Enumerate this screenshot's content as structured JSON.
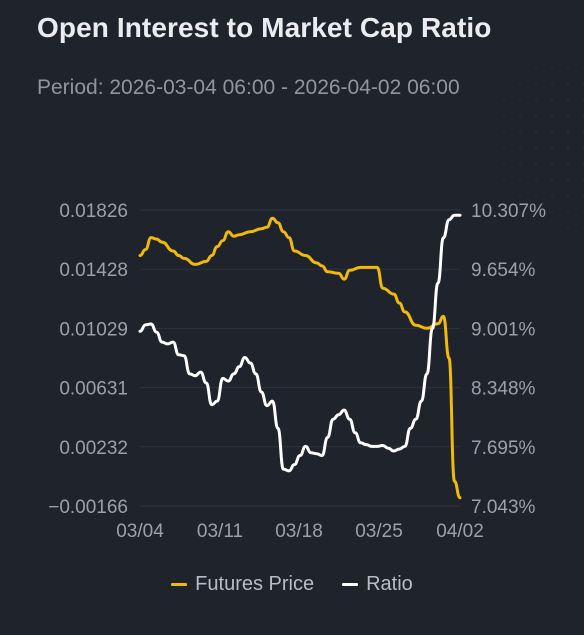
{
  "header": {
    "title": "Open Interest to Market Cap Ratio",
    "period": "Period: 2026-03-04 06:00 - 2026-04-02 06:00"
  },
  "colors": {
    "futures": "#f0b90b",
    "ratio": "#ffffff",
    "grid": "#2e333c",
    "axis_text": "#9aa1ac",
    "background": "#1f232b"
  },
  "legend": [
    {
      "name": "Futures Price",
      "color": "#f0b90b"
    },
    {
      "name": "Ratio",
      "color": "#ffffff"
    }
  ],
  "chart_data": {
    "type": "line",
    "title": "Open Interest to Market Cap Ratio",
    "x_ticks": [
      "03/04",
      "03/11",
      "03/18",
      "03/25",
      "04/02"
    ],
    "y_left_ticks": [
      "0.01826",
      "0.01428",
      "0.01029",
      "0.00631",
      "0.00232",
      "−0.00166"
    ],
    "y_right_ticks": [
      "10.307%",
      "9.654%",
      "9.001%",
      "8.348%",
      "7.695%",
      "7.043%"
    ],
    "y_left_range": [
      -0.00166,
      0.01826
    ],
    "y_right_range": [
      7.043,
      10.307
    ],
    "x_range": [
      "03/04",
      "04/02"
    ],
    "grid": true,
    "legend_position": "bottom",
    "series": [
      {
        "name": "Futures Price",
        "axis": "left",
        "x": [
          "03/04",
          "03/04.5",
          "03/05",
          "03/05.5",
          "03/06",
          "03/07",
          "03/07.5",
          "03/08",
          "03/09",
          "03/10",
          "03/10.5",
          "03/11",
          "03/11.5",
          "03/12",
          "03/12.5",
          "03/13",
          "03/14",
          "03/15",
          "03/15.5",
          "03/16",
          "03/16.5",
          "03/17",
          "03/17.5",
          "03/18",
          "03/19",
          "03/20",
          "03/20.5",
          "03/21",
          "03/22",
          "03/22.5",
          "03/23",
          "03/24",
          "03/25",
          "03/25.5",
          "03/26",
          "03/27",
          "03/27.5",
          "03/28",
          "03/29",
          "03/30",
          "03/31",
          "03/31.5",
          "04/01",
          "04/01.5",
          "04/02"
        ],
        "values": [
          0.0152,
          0.0156,
          0.0164,
          0.0163,
          0.0161,
          0.0155,
          0.0152,
          0.015,
          0.0146,
          0.0148,
          0.0152,
          0.0158,
          0.0162,
          0.0168,
          0.0165,
          0.0166,
          0.0168,
          0.017,
          0.0171,
          0.0177,
          0.0174,
          0.0168,
          0.0164,
          0.0155,
          0.0152,
          0.0147,
          0.0145,
          0.0141,
          0.014,
          0.0136,
          0.0142,
          0.0144,
          0.0144,
          0.0144,
          0.013,
          0.0126,
          0.012,
          0.0114,
          0.0105,
          0.0103,
          0.0106,
          0.0111,
          0.0083,
          -0.0,
          -0.0011
        ]
      },
      {
        "name": "Ratio",
        "axis": "right",
        "x": [
          "03/04",
          "03/04.5",
          "03/05",
          "03/05.5",
          "03/06",
          "03/06.5",
          "03/07",
          "03/07.5",
          "03/08",
          "03/08.5",
          "03/09",
          "03/09.5",
          "03/10",
          "03/10.5",
          "03/11",
          "03/11.5",
          "03/12",
          "03/12.5",
          "03/13",
          "03/13.5",
          "03/14",
          "03/14.5",
          "03/15",
          "03/15.5",
          "03/16",
          "03/16.5",
          "03/17",
          "03/17.5",
          "03/18",
          "03/18.5",
          "03/19",
          "03/19.5",
          "03/20",
          "03/20.5",
          "03/21",
          "03/21.5",
          "03/22",
          "03/22.5",
          "03/23",
          "03/23.5",
          "03/24",
          "03/24.5",
          "03/25",
          "03/25.5",
          "03/26",
          "03/26.5",
          "03/27",
          "03/27.5",
          "03/28",
          "03/28.5",
          "03/29",
          "03/29.5",
          "03/30",
          "03/30.5",
          "03/31",
          "03/31.5",
          "04/01",
          "04/01.5",
          "04/02"
        ],
        "values": [
          8.97,
          9.04,
          9.05,
          8.96,
          8.85,
          8.83,
          8.85,
          8.71,
          8.7,
          8.5,
          8.48,
          8.52,
          8.4,
          8.16,
          8.2,
          8.45,
          8.42,
          8.5,
          8.58,
          8.68,
          8.62,
          8.5,
          8.3,
          8.15,
          8.2,
          7.9,
          7.45,
          7.43,
          7.5,
          7.6,
          7.7,
          7.63,
          7.62,
          7.6,
          7.8,
          8.0,
          8.05,
          8.1,
          8.0,
          7.85,
          7.74,
          7.72,
          7.7,
          7.7,
          7.71,
          7.68,
          7.65,
          7.67,
          7.7,
          7.9,
          8.0,
          8.2,
          8.5,
          9.0,
          9.5,
          10.0,
          10.2,
          10.25,
          10.25
        ]
      }
    ]
  }
}
